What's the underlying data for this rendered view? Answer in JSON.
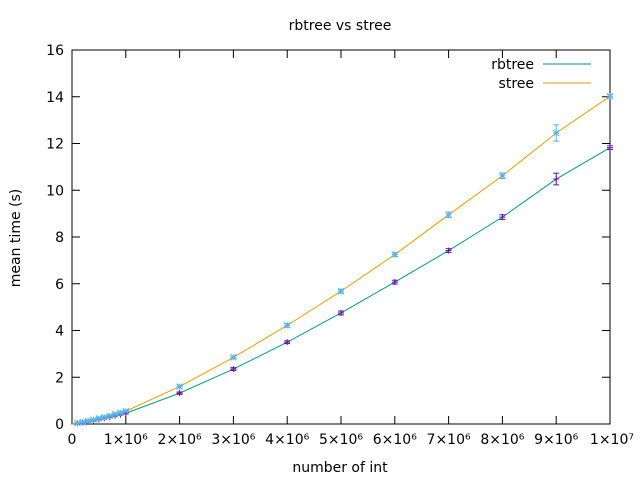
{
  "chart_data": {
    "type": "line",
    "title": "rbtree vs stree",
    "xlabel": "number of int",
    "ylabel": "mean time (s)",
    "xlim": [
      0,
      10000000
    ],
    "ylim": [
      0,
      16
    ],
    "grid": false,
    "legend_position": "top-right",
    "x_tick_values": [
      0,
      1000000,
      2000000,
      3000000,
      4000000,
      5000000,
      6000000,
      7000000,
      8000000,
      9000000,
      10000000
    ],
    "x_tick_labels": [
      "0",
      "1×10⁶",
      "2×10⁶",
      "3×10⁶",
      "4×10⁶",
      "5×10⁶",
      "6×10⁶",
      "7×10⁶",
      "8×10⁶",
      "9×10⁶",
      "1×10⁷"
    ],
    "y_tick_values": [
      0,
      2,
      4,
      6,
      8,
      10,
      12,
      14,
      16
    ],
    "y_tick_labels": [
      "0",
      "2",
      "4",
      "6",
      "8",
      "10",
      "12",
      "14",
      "16"
    ],
    "series": [
      {
        "name": "rbtree",
        "color": "#009e73",
        "marker_color": "#6a0dad",
        "marker": "plus",
        "x": [
          100000,
          200000,
          300000,
          400000,
          500000,
          600000,
          700000,
          800000,
          900000,
          1000000,
          2000000,
          3000000,
          4000000,
          5000000,
          6000000,
          7000000,
          8000000,
          9000000,
          10000000
        ],
        "values": [
          0.03,
          0.06,
          0.1,
          0.14,
          0.19,
          0.24,
          0.29,
          0.35,
          0.4,
          0.46,
          1.32,
          2.35,
          3.5,
          4.75,
          6.07,
          7.42,
          8.85,
          10.48,
          11.82
        ],
        "error": [
          0.02,
          0.02,
          0.02,
          0.02,
          0.02,
          0.02,
          0.02,
          0.02,
          0.02,
          0.03,
          0.05,
          0.06,
          0.06,
          0.08,
          0.08,
          0.08,
          0.1,
          0.25,
          0.08
        ]
      },
      {
        "name": "stree",
        "color": "#e69f00",
        "marker_color": "#56b4e9",
        "marker": "star",
        "x": [
          100000,
          200000,
          300000,
          400000,
          500000,
          600000,
          700000,
          800000,
          900000,
          1000000,
          2000000,
          3000000,
          4000000,
          5000000,
          6000000,
          7000000,
          8000000,
          9000000,
          10000000
        ],
        "values": [
          0.04,
          0.08,
          0.13,
          0.18,
          0.24,
          0.29,
          0.35,
          0.42,
          0.48,
          0.55,
          1.6,
          2.85,
          4.22,
          5.68,
          7.25,
          8.95,
          10.62,
          12.45,
          14.02
        ],
        "error": [
          0.02,
          0.02,
          0.02,
          0.02,
          0.02,
          0.02,
          0.02,
          0.02,
          0.02,
          0.03,
          0.06,
          0.06,
          0.08,
          0.08,
          0.08,
          0.12,
          0.12,
          0.35,
          0.08
        ]
      }
    ]
  }
}
